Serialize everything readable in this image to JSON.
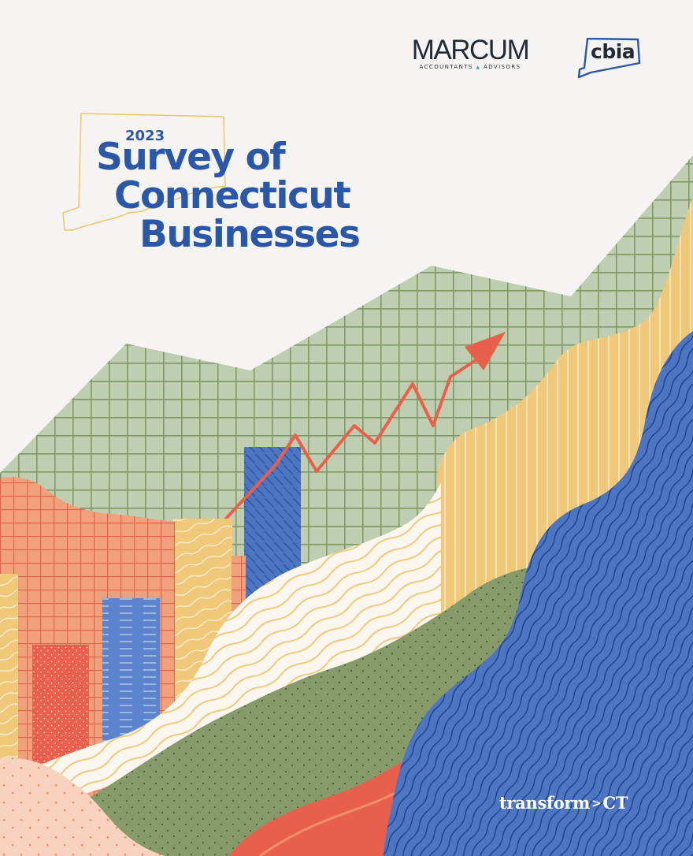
{
  "logos": {
    "marcum_word": "MARCUM",
    "marcum_tagline_left": "ACCOUNTANTS",
    "marcum_tagline_right": "ADVISORS",
    "cbia_word": "cbia"
  },
  "title": {
    "year": "2023",
    "line1": "Survey of",
    "line2": "Connecticut",
    "line3": "Businesses"
  },
  "footer": {
    "brand_left": "transform",
    "brand_separator": ">",
    "brand_right": "CT"
  },
  "colors": {
    "background": "#f6f4f2",
    "title_blue": "#2b57a8",
    "grid_green": "#bfcdb0",
    "grid_line": "#7e9866",
    "orange": "#f0a07a",
    "mustard": "#efc87a",
    "wave_blue": "#4d76c2",
    "olive": "#869a6a",
    "arrow_red": "#e8604c"
  },
  "icons": [
    "connecticut-outline-icon",
    "cbia-state-outline-icon",
    "trend-arrow-icon"
  ]
}
